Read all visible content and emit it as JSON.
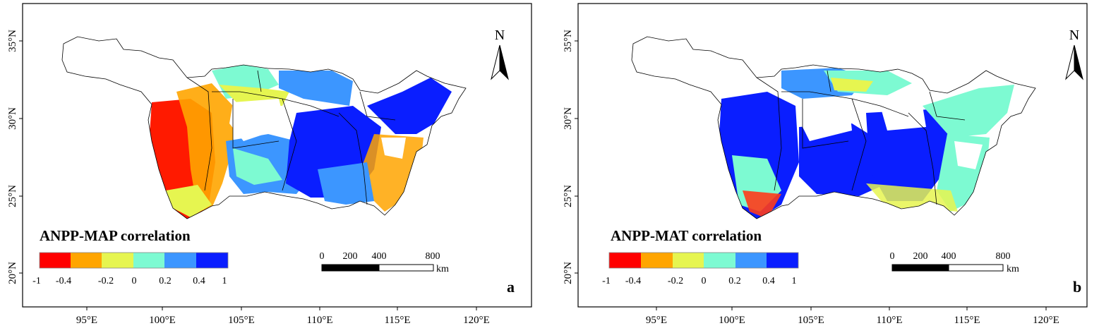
{
  "panels": [
    {
      "label": "a",
      "legend_title": "ANPP-MAP correlation",
      "legend_ticks": [
        "-1",
        "-0.4",
        "-0.2",
        "0",
        "0.2",
        "0.4",
        "1"
      ],
      "legend_colors": [
        "#ff0000",
        "#ffa500",
        "#e6f550",
        "#7dfad2",
        "#3c96ff",
        "#0a1eff"
      ],
      "scale_labels": [
        "0",
        "200",
        "400",
        "800"
      ],
      "scale_unit": "km",
      "north": "N",
      "lat_labels": [
        "35°N",
        "30°N",
        "25°N",
        "20°N"
      ],
      "lon_labels": [
        "95°E",
        "100°E",
        "105°E",
        "110°E",
        "115°E",
        "120°E"
      ]
    },
    {
      "label": "b",
      "legend_title": "ANPP-MAT correlation",
      "legend_ticks": [
        "-1",
        "-0.4",
        "-0.2",
        "0",
        "0.2",
        "0.4",
        "1"
      ],
      "legend_colors": [
        "#ff0000",
        "#ffa500",
        "#e6f550",
        "#7dfad2",
        "#3c96ff",
        "#0a1eff"
      ],
      "scale_labels": [
        "0",
        "200",
        "400",
        "800"
      ],
      "scale_unit": "km",
      "north": "N",
      "lat_labels": [
        "35°N",
        "30°N",
        "25°N",
        "20°N"
      ],
      "lon_labels": [
        "95°E",
        "100°E",
        "105°E",
        "110°E",
        "115°E",
        "120°E"
      ]
    }
  ]
}
